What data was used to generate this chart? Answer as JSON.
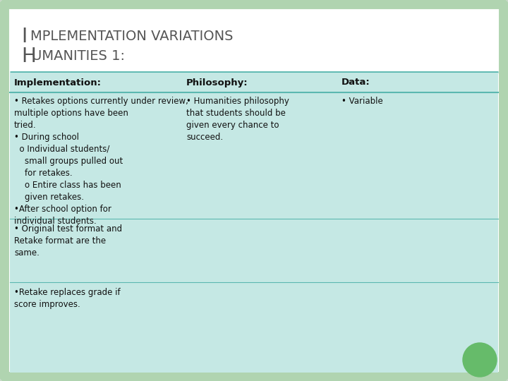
{
  "slide_bg": "#c8d9c8",
  "white_bg": "#ffffff",
  "table_bg": "#c5e8e4",
  "border_color": "#b0d4b0",
  "header_line_color": "#5bb8b0",
  "title_color": "#555555",
  "text_color": "#111111",
  "title_big_fs": 20,
  "title_small_fs": 14,
  "header_fs": 9.5,
  "body_fs": 8.5,
  "col_headers": [
    "Implementation:",
    "Philosophy:",
    "Data:"
  ],
  "col1_row1": "• Retakes options currently under review,\nmultiple options have been\ntried.\n• During school\n  o Individual students/\n    small groups pulled out\n    for retakes.\n    o Entire class has been\n    given retakes.\n•After school option for\nindividual students.",
  "col1_row2": "• Original test format and\nRetake format are the\nsame.",
  "col1_row3": "•Retake replaces grade if\nscore improves.",
  "col2_row1": "• Humanities philosophy\nthat students should be\ngiven every chance to\nsucceed.",
  "col3_row1": "• Variable",
  "circle_color": "#66bb6a"
}
